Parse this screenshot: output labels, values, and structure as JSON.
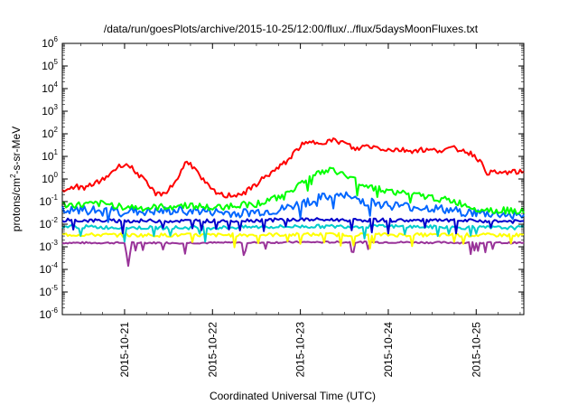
{
  "chart_data": {
    "type": "line",
    "title": "/data/run/goesPlots/archive/2015-10-25/12:00/flux/../flux/5daysMoonFluxes.txt",
    "xlabel": "Coordinated Universal Time (UTC)",
    "ylabel_parts": [
      "protons/cm",
      "2",
      "-s-sr-MeV"
    ],
    "yscale": "log",
    "ylim": [
      1e-06,
      1000000.0
    ],
    "xlim_days": [
      "2015-10-20 07:00",
      "2015-10-25 13:00"
    ],
    "y_ticks": [
      {
        "base": "10",
        "exp": "-6",
        "value": 1e-06
      },
      {
        "base": "10",
        "exp": "-5",
        "value": 1e-05
      },
      {
        "base": "10",
        "exp": "-4",
        "value": 0.0001
      },
      {
        "base": "10",
        "exp": "-3",
        "value": 0.001
      },
      {
        "base": "10",
        "exp": "-2",
        "value": 0.01
      },
      {
        "base": "10",
        "exp": "-1",
        "value": 0.1
      },
      {
        "base": "10",
        "exp": "0",
        "value": 1
      },
      {
        "base": "10",
        "exp": "1",
        "value": 10
      },
      {
        "base": "10",
        "exp": "2",
        "value": 100
      },
      {
        "base": "10",
        "exp": "3",
        "value": 1000
      },
      {
        "base": "10",
        "exp": "4",
        "value": 10000
      },
      {
        "base": "10",
        "exp": "5",
        "value": 100000
      },
      {
        "base": "10",
        "exp": "6",
        "value": 1000000
      }
    ],
    "x_ticks": [
      "2015-10-21",
      "2015-10-22",
      "2015-10-23",
      "2015-10-24",
      "2015-10-25"
    ],
    "grid": false,
    "series": [
      {
        "color": "#ff0000",
        "x": [
          "2015-10-20 07:00",
          "2015-10-20 09:00",
          "2015-10-20 11:00",
          "2015-10-20 13:00",
          "2015-10-20 15:00",
          "2015-10-20 17:00",
          "2015-10-20 19:00",
          "2015-10-20 21:00",
          "2015-10-21 00:00",
          "2015-10-21 02:00",
          "2015-10-21 04:00",
          "2015-10-21 07:00",
          "2015-10-21 09:00",
          "2015-10-21 11:00",
          "2015-10-21 13:00",
          "2015-10-21 15:00",
          "2015-10-21 17:00",
          "2015-10-21 19:00",
          "2015-10-21 21:00",
          "2015-10-22 00:00",
          "2015-10-22 03:00",
          "2015-10-22 06:00",
          "2015-10-22 09:00",
          "2015-10-22 12:00",
          "2015-10-22 15:00",
          "2015-10-22 18:00",
          "2015-10-22 21:00",
          "2015-10-23 00:00",
          "2015-10-23 03:00",
          "2015-10-23 06:00",
          "2015-10-23 09:00",
          "2015-10-23 12:00",
          "2015-10-23 15:00",
          "2015-10-23 18:00",
          "2015-10-23 21:00",
          "2015-10-24 00:00",
          "2015-10-24 03:00",
          "2015-10-24 06:00",
          "2015-10-24 09:00",
          "2015-10-24 12:00",
          "2015-10-24 15:00",
          "2015-10-24 18:00",
          "2015-10-24 21:00",
          "2015-10-25 00:00",
          "2015-10-25 03:00",
          "2015-10-25 06:00",
          "2015-10-25 09:00",
          "2015-10-25 13:00"
        ],
        "y": [
          0.25,
          0.35,
          0.5,
          0.35,
          0.6,
          0.7,
          1.2,
          2.5,
          5,
          3,
          1.5,
          0.4,
          0.2,
          0.25,
          0.5,
          1.5,
          7,
          3,
          1,
          0.3,
          0.18,
          0.2,
          0.25,
          0.6,
          1.5,
          3,
          8,
          30,
          40,
          45,
          50,
          40,
          20,
          30,
          25,
          20,
          20,
          18,
          20,
          18,
          20,
          22,
          18,
          10,
          2,
          1.8,
          2,
          2
        ]
      },
      {
        "color": "#00ff00",
        "x": [
          "2015-10-20 07:00",
          "2015-10-20 12:00",
          "2015-10-20 18:00",
          "2015-10-21 00:00",
          "2015-10-21 06:00",
          "2015-10-21 12:00",
          "2015-10-21 18:00",
          "2015-10-22 00:00",
          "2015-10-22 06:00",
          "2015-10-22 12:00",
          "2015-10-22 18:00",
          "2015-10-23 00:00",
          "2015-10-23 03:00",
          "2015-10-23 06:00",
          "2015-10-23 09:00",
          "2015-10-23 12:00",
          "2015-10-23 18:00",
          "2015-10-24 00:00",
          "2015-10-24 06:00",
          "2015-10-24 12:00",
          "2015-10-24 18:00",
          "2015-10-25 00:00",
          "2015-10-25 06:00",
          "2015-10-25 13:00"
        ],
        "y": [
          0.07,
          0.07,
          0.08,
          0.06,
          0.05,
          0.06,
          0.07,
          0.05,
          0.07,
          0.08,
          0.15,
          0.6,
          1.5,
          2,
          2.5,
          1.5,
          0.5,
          0.3,
          0.2,
          0.15,
          0.1,
          0.05,
          0.04,
          0.04
        ]
      },
      {
        "color": "#0066ff",
        "x": [
          "2015-10-20 07:00",
          "2015-10-20 18:00",
          "2015-10-21 06:00",
          "2015-10-21 18:00",
          "2015-10-22 06:00",
          "2015-10-22 18:00",
          "2015-10-23 00:00",
          "2015-10-23 06:00",
          "2015-10-23 12:00",
          "2015-10-23 18:00",
          "2015-10-24 00:00",
          "2015-10-24 12:00",
          "2015-10-25 00:00",
          "2015-10-25 13:00"
        ],
        "y": [
          0.04,
          0.04,
          0.035,
          0.04,
          0.03,
          0.04,
          0.08,
          0.15,
          0.18,
          0.1,
          0.07,
          0.05,
          0.03,
          0.025
        ]
      },
      {
        "color": "#0000cc",
        "x": [
          "2015-10-20 07:00",
          "2015-10-21 00:00",
          "2015-10-22 00:00",
          "2015-10-23 00:00",
          "2015-10-24 00:00",
          "2015-10-25 00:00",
          "2015-10-25 13:00"
        ],
        "y": [
          0.015,
          0.014,
          0.014,
          0.016,
          0.015,
          0.014,
          0.013
        ]
      },
      {
        "color": "#00cccc",
        "x": [
          "2015-10-20 07:00",
          "2015-10-21 00:00",
          "2015-10-22 00:00",
          "2015-10-23 00:00",
          "2015-10-24 00:00",
          "2015-10-25 00:00",
          "2015-10-25 13:00"
        ],
        "y": [
          0.008,
          0.007,
          0.007,
          0.008,
          0.008,
          0.007,
          0.007
        ]
      },
      {
        "color": "#ffff00",
        "x": [
          "2015-10-20 07:00",
          "2015-10-21 00:00",
          "2015-10-22 00:00",
          "2015-10-23 00:00",
          "2015-10-24 00:00",
          "2015-10-25 00:00",
          "2015-10-25 13:00"
        ],
        "y": [
          0.0035,
          0.0033,
          0.0033,
          0.0035,
          0.0034,
          0.0033,
          0.0033
        ]
      },
      {
        "color": "#993399",
        "x": [
          "2015-10-20 07:00",
          "2015-10-21 00:00",
          "2015-10-21 01:00",
          "2015-10-21 02:00",
          "2015-10-22 00:00",
          "2015-10-23 00:00",
          "2015-10-24 00:00",
          "2015-10-25 00:00",
          "2015-10-25 13:00"
        ],
        "y": [
          0.0015,
          0.0015,
          0.00015,
          0.0015,
          0.0015,
          0.0016,
          0.0016,
          0.0015,
          0.0015
        ]
      }
    ]
  }
}
